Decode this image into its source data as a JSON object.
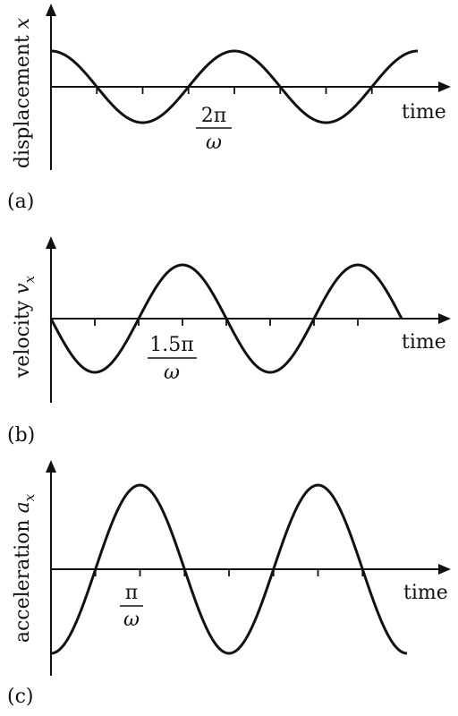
{
  "chart_data": [
    {
      "type": "line",
      "panel_label": "(a)",
      "ylabel_text": "displacement ",
      "ylabel_var": "x",
      "ylabel_sub": "",
      "xlabel": "time",
      "tick_label_num": "2π",
      "tick_label_den": "ω",
      "function": "cos",
      "amplitude": 1,
      "tick_label_position_rad": 6.283,
      "x_range_rad": [
        0,
        12.566
      ],
      "ylim": [
        -1.4,
        1.4
      ],
      "grid": false
    },
    {
      "type": "line",
      "panel_label": "(b)",
      "ylabel_text": "velocity ",
      "ylabel_var": "v",
      "ylabel_sub": "x",
      "xlabel": "time",
      "tick_label_num": "1.5π",
      "tick_label_den": "ω",
      "function": "-sin",
      "amplitude": 1,
      "tick_label_position_rad": 4.712,
      "x_range_rad": [
        0,
        12.566
      ],
      "ylim": [
        -1.4,
        1.4
      ],
      "grid": false
    },
    {
      "type": "line",
      "panel_label": "(c)",
      "ylabel_text": "acceleration ",
      "ylabel_var": "a",
      "ylabel_sub": "x",
      "xlabel": "time",
      "tick_label_num": "π",
      "tick_label_den": "ω",
      "function": "-cos",
      "amplitude": 1,
      "tick_label_position_rad": 3.1416,
      "x_range_rad": [
        0,
        12.566
      ],
      "ylim": [
        -1.2,
        1.2
      ],
      "grid": false
    }
  ],
  "colors": {
    "ink": "#111111",
    "background": "#ffffff"
  }
}
